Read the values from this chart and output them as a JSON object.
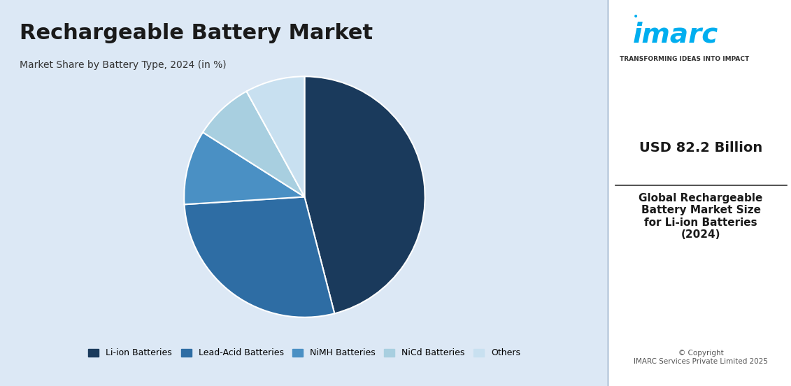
{
  "title": "Rechargeable Battery Market",
  "subtitle": "Market Share by Battery Type, 2024 (in %)",
  "pie_labels": [
    "Li-ion Batteries",
    "Lead-Acid Batteries",
    "NiMH Batteries",
    "NiCd Batteries",
    "Others"
  ],
  "pie_values": [
    46,
    28,
    10,
    8,
    8
  ],
  "pie_colors": [
    "#1a3a5c",
    "#2e6da4",
    "#4a90c4",
    "#a8cfe0",
    "#c8e0f0"
  ],
  "pie_startangle": 90,
  "bg_color_left": "#dce8f5",
  "bg_color_right": "#ffffff",
  "right_panel_value": "USD 82.2 Billion",
  "right_panel_desc": "Global Rechargeable\nBattery Market Size\nfor Li-ion Batteries\n(2024)",
  "copyright_text": "© Copyright\nIMARC Services Private Limited 2025",
  "imarc_tagline": "TRANSFORMING IDEAS INTO IMPACT",
  "legend_labels": [
    "Li-ion Batteries",
    "Lead-Acid Batteries",
    "NiMH Batteries",
    "NiCd Batteries",
    "Others"
  ],
  "legend_colors": [
    "#1a3a5c",
    "#2e6da4",
    "#4a90c4",
    "#a8cfe0",
    "#c8e0f0"
  ]
}
